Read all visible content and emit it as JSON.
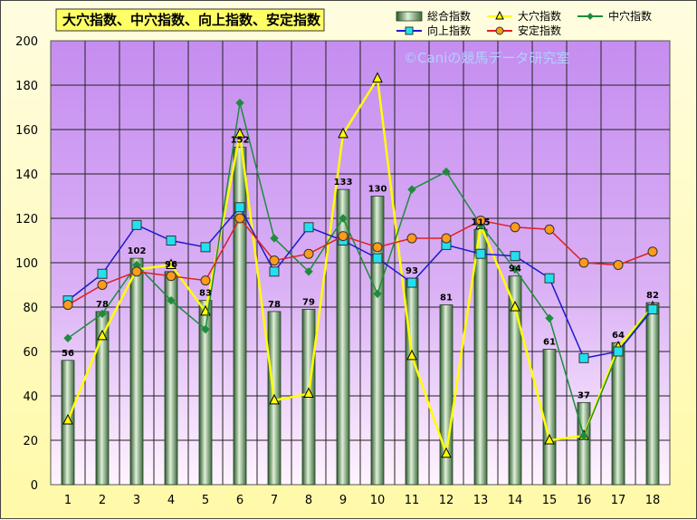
{
  "chart_data": {
    "type": "bar",
    "title": "大穴指数、中穴指数、向上指数、安定指数",
    "watermark": "©Caniの競馬データ研究室",
    "xlabel": "",
    "ylabel": "",
    "categories": [
      "1",
      "2",
      "3",
      "4",
      "5",
      "6",
      "7",
      "8",
      "9",
      "10",
      "11",
      "12",
      "13",
      "14",
      "15",
      "16",
      "17",
      "18"
    ],
    "ylim": [
      0,
      200
    ],
    "yticks": [
      0,
      20,
      40,
      60,
      80,
      100,
      120,
      140,
      160,
      180,
      200
    ],
    "grid": true,
    "legend_position": "top-right",
    "series": [
      {
        "name": "総合指数",
        "kind": "bar",
        "color": "#9dc79d",
        "values": [
          56,
          78,
          102,
          96,
          83,
          152,
          78,
          79,
          133,
          130,
          93,
          81,
          115,
          94,
          61,
          37,
          64,
          82
        ],
        "labels": [
          "56",
          "78",
          "102",
          "96",
          "83",
          "152",
          "78",
          "79",
          "133",
          "130",
          "93",
          "81",
          "115",
          "94",
          "61",
          "37",
          "64",
          "82"
        ]
      },
      {
        "name": "大穴指数",
        "kind": "line",
        "color": "#ffff00",
        "marker": "triangle",
        "values": [
          29,
          67,
          97,
          99,
          78,
          158,
          38,
          41,
          158,
          183,
          58,
          14,
          117,
          80,
          20,
          22,
          62,
          80
        ]
      },
      {
        "name": "中穴指数",
        "kind": "line",
        "color": "#1e8c3c",
        "marker": "diamond",
        "values": [
          66,
          77,
          99,
          83,
          70,
          172,
          111,
          96,
          120,
          86,
          133,
          141,
          117,
          97,
          75,
          22,
          60,
          80
        ]
      },
      {
        "name": "向上指数",
        "kind": "line",
        "color": "#1a1acc",
        "marker": "square",
        "values": [
          83,
          95,
          117,
          110,
          107,
          125,
          96,
          116,
          110,
          102,
          91,
          108,
          104,
          103,
          93,
          57,
          60,
          79
        ]
      },
      {
        "name": "安定指数",
        "kind": "line",
        "color": "#e02020",
        "marker": "circle",
        "values": [
          81,
          90,
          96,
          94,
          92,
          120,
          101,
          104,
          112,
          107,
          111,
          111,
          119,
          116,
          115,
          100,
          99,
          105
        ]
      }
    ]
  }
}
